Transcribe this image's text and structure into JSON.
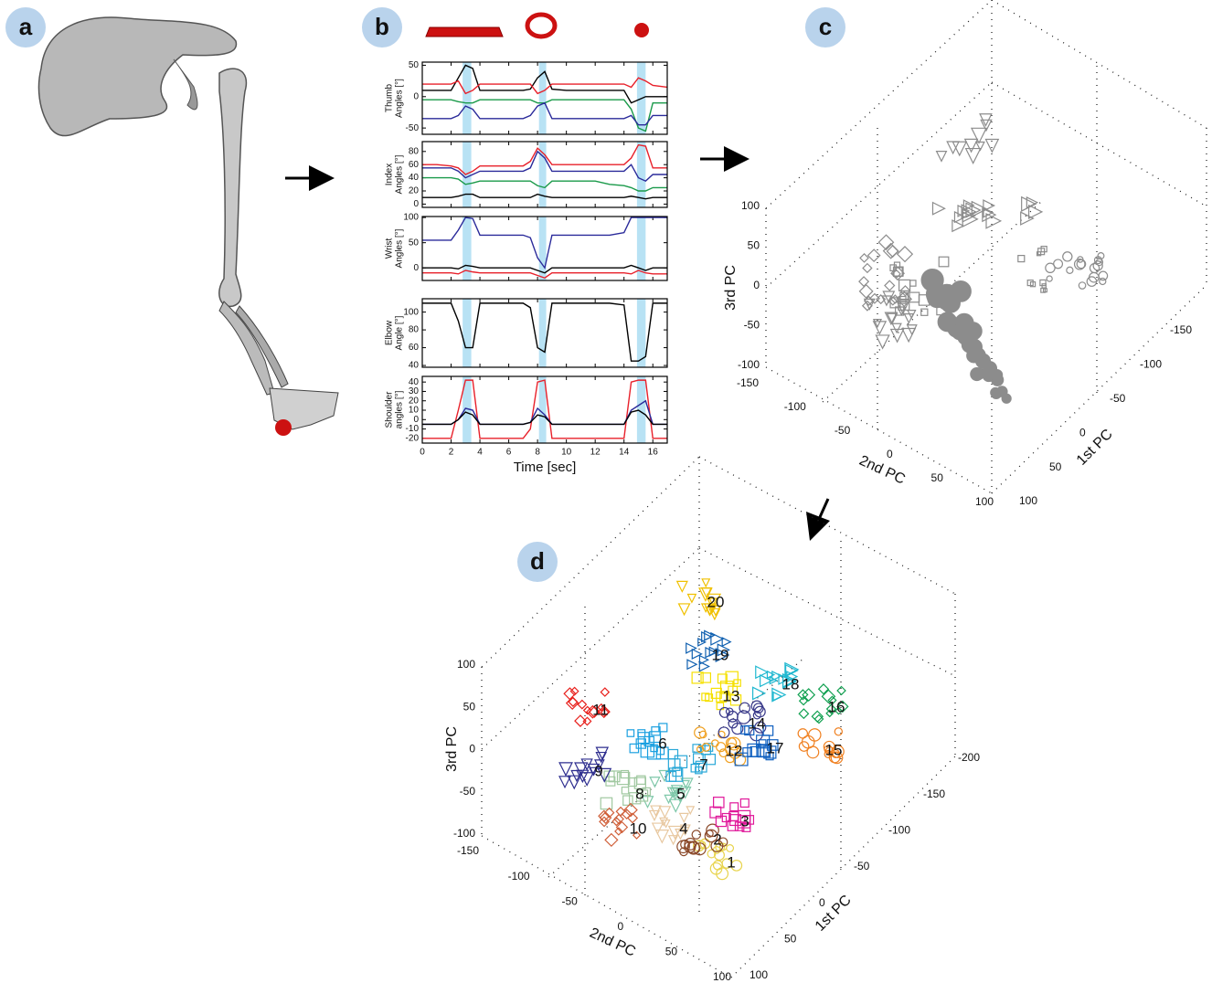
{
  "panel_labels": [
    "a",
    "b",
    "c",
    "d"
  ],
  "panel_b": {
    "highlights": [
      [
        2.8,
        3.4
      ],
      [
        8.1,
        8.6
      ],
      [
        14.9,
        15.5
      ]
    ]
  },
  "chart_data": [
    {
      "type": "line",
      "ylabel": [
        "Thumb",
        "Angles [°]"
      ],
      "xlim": [
        0,
        17
      ],
      "ylim": [
        -60,
        55
      ],
      "yticks": [
        -50,
        0,
        50
      ],
      "x": [
        0,
        1,
        2,
        2.5,
        3,
        3.5,
        4,
        5,
        6,
        7,
        7.5,
        8,
        8.5,
        9,
        10,
        11,
        12,
        13,
        14,
        14.5,
        15,
        15.5,
        16,
        17
      ],
      "series": [
        {
          "color": "#000000",
          "values": [
            10,
            10,
            10,
            30,
            50,
            45,
            10,
            10,
            10,
            10,
            12,
            30,
            40,
            12,
            10,
            10,
            10,
            10,
            10,
            -10,
            -5,
            0,
            0,
            0
          ]
        },
        {
          "color": "#e8202a",
          "values": [
            20,
            20,
            20,
            25,
            5,
            10,
            20,
            20,
            20,
            20,
            20,
            5,
            10,
            20,
            20,
            20,
            20,
            20,
            20,
            15,
            30,
            25,
            18,
            15
          ]
        },
        {
          "color": "#1a9a4a",
          "values": [
            -5,
            -5,
            -5,
            -8,
            -10,
            -10,
            -5,
            -5,
            -5,
            -5,
            -5,
            -10,
            -10,
            -5,
            -5,
            -5,
            -5,
            -5,
            -5,
            -20,
            -50,
            -55,
            -10,
            -10
          ]
        },
        {
          "color": "#2a2a9a",
          "values": [
            -35,
            -35,
            -35,
            -30,
            -15,
            -20,
            -35,
            -35,
            -35,
            -35,
            -30,
            -15,
            -10,
            -35,
            -35,
            -35,
            -35,
            -35,
            -35,
            -30,
            -45,
            -45,
            -30,
            -30
          ]
        }
      ]
    },
    {
      "type": "line",
      "ylabel": [
        "Index",
        "Angles [°]"
      ],
      "xlim": [
        0,
        17
      ],
      "ylim": [
        -5,
        95
      ],
      "yticks": [
        0,
        20,
        40,
        60,
        80
      ],
      "x": [
        0,
        1,
        2,
        2.5,
        3,
        3.5,
        4,
        5,
        6,
        7,
        7.5,
        8,
        8.5,
        9,
        10,
        11,
        12,
        13,
        14,
        14.5,
        15,
        15.5,
        16,
        17
      ],
      "series": [
        {
          "color": "#e8202a",
          "values": [
            60,
            60,
            58,
            55,
            45,
            50,
            58,
            58,
            58,
            58,
            65,
            85,
            75,
            60,
            60,
            60,
            60,
            60,
            60,
            70,
            90,
            88,
            55,
            55
          ]
        },
        {
          "color": "#2a2a9a",
          "values": [
            55,
            55,
            55,
            50,
            40,
            45,
            50,
            50,
            50,
            50,
            55,
            80,
            70,
            50,
            50,
            50,
            50,
            50,
            50,
            60,
            40,
            35,
            45,
            45
          ]
        },
        {
          "color": "#1a9a4a",
          "values": [
            40,
            40,
            40,
            38,
            30,
            32,
            35,
            35,
            35,
            35,
            35,
            28,
            25,
            35,
            35,
            35,
            35,
            30,
            28,
            25,
            20,
            20,
            25,
            25
          ]
        },
        {
          "color": "#000000",
          "values": [
            10,
            10,
            10,
            12,
            15,
            15,
            10,
            10,
            10,
            10,
            10,
            15,
            12,
            10,
            10,
            10,
            10,
            10,
            10,
            12,
            10,
            8,
            10,
            10
          ]
        }
      ]
    },
    {
      "type": "line",
      "ylabel": [
        "Wrist",
        "Angles [°]"
      ],
      "xlim": [
        0,
        17
      ],
      "ylim": [
        -25,
        102
      ],
      "yticks": [
        0,
        50,
        100
      ],
      "x": [
        0,
        1,
        2,
        2.5,
        3,
        3.5,
        4,
        5,
        6,
        7,
        7.5,
        8,
        8.5,
        9,
        10,
        11,
        12,
        13,
        14,
        14.5,
        15,
        15.5,
        16,
        17
      ],
      "series": [
        {
          "color": "#2a2a9a",
          "values": [
            55,
            55,
            55,
            75,
            100,
            98,
            65,
            65,
            65,
            65,
            60,
            20,
            0,
            65,
            65,
            65,
            65,
            65,
            70,
            100,
            100,
            100,
            100,
            100
          ]
        },
        {
          "color": "#000000",
          "values": [
            0,
            0,
            0,
            -2,
            5,
            3,
            0,
            0,
            0,
            0,
            0,
            -5,
            -10,
            0,
            0,
            0,
            0,
            0,
            0,
            5,
            0,
            -5,
            0,
            0
          ]
        },
        {
          "color": "#e8202a",
          "values": [
            -10,
            -10,
            -10,
            -12,
            -5,
            -8,
            -10,
            -10,
            -10,
            -10,
            -10,
            -15,
            -20,
            -10,
            -10,
            -10,
            -10,
            -10,
            -10,
            -12,
            -5,
            -10,
            -12,
            -12
          ]
        }
      ]
    },
    {
      "type": "line",
      "ylabel": [
        "Elbow",
        "Angle [°]"
      ],
      "xlim": [
        0,
        17
      ],
      "ylim": [
        38,
        115
      ],
      "yticks": [
        40,
        60,
        80,
        100
      ],
      "x": [
        0,
        1,
        2,
        2.5,
        3,
        3.5,
        4,
        5,
        6,
        7,
        7.5,
        8,
        8.5,
        9,
        10,
        11,
        12,
        13,
        14,
        14.5,
        15,
        15.5,
        16,
        17
      ],
      "series": [
        {
          "color": "#000000",
          "values": [
            110,
            110,
            110,
            90,
            60,
            60,
            110,
            110,
            110,
            110,
            105,
            60,
            55,
            110,
            110,
            110,
            110,
            110,
            108,
            45,
            45,
            50,
            110,
            110
          ]
        }
      ]
    },
    {
      "type": "line",
      "ylabel": [
        "Shoulder",
        "angles [°]"
      ],
      "xlabel": "Time [sec]",
      "xlim": [
        0,
        17
      ],
      "xticks": [
        0,
        2,
        4,
        6,
        8,
        10,
        12,
        14,
        16
      ],
      "ylim": [
        -25,
        46
      ],
      "yticks": [
        -20,
        -10,
        0,
        10,
        20,
        30,
        40
      ],
      "x": [
        0,
        1,
        2,
        2.5,
        3,
        3.5,
        4,
        5,
        6,
        7,
        7.5,
        8,
        8.5,
        9,
        10,
        11,
        12,
        13,
        14,
        14.5,
        15,
        15.5,
        16,
        17
      ],
      "series": [
        {
          "color": "#e8202a",
          "values": [
            -20,
            -20,
            -20,
            10,
            42,
            42,
            -20,
            -20,
            -20,
            -20,
            -10,
            40,
            42,
            -20,
            -20,
            -20,
            -20,
            -20,
            -20,
            40,
            42,
            42,
            -20,
            -20
          ]
        },
        {
          "color": "#2a2a9a",
          "values": [
            -5,
            -5,
            -5,
            0,
            12,
            10,
            -5,
            -5,
            -5,
            -5,
            -3,
            12,
            5,
            -5,
            -5,
            -5,
            -5,
            -5,
            -5,
            10,
            15,
            20,
            -5,
            -5
          ]
        },
        {
          "color": "#000000",
          "values": [
            -5,
            -5,
            -5,
            0,
            8,
            5,
            -5,
            -5,
            -5,
            -5,
            -3,
            5,
            3,
            -5,
            -5,
            -5,
            -5,
            -5,
            -5,
            8,
            10,
            5,
            -5,
            -5
          ]
        }
      ]
    }
  ],
  "panel_c": {
    "zlabel": "3rd  PC",
    "zticks": [
      100,
      50,
      0,
      -50,
      -100
    ],
    "ylabel": "2nd PC",
    "yticks": [
      -150,
      -100,
      -50,
      0,
      50,
      100
    ],
    "xlabel": "1st PC",
    "xticks": [
      100,
      50,
      0,
      -50,
      -100,
      -150
    ]
  },
  "panel_d": {
    "zlabel": "3rd PC",
    "zticks": [
      100,
      50,
      0,
      -50,
      -100
    ],
    "ylabel": "2nd PC",
    "yticks": [
      -150,
      -100,
      -50,
      0,
      50,
      100
    ],
    "xlabel": "1st PC",
    "xticks": [
      100,
      50,
      0,
      -50,
      -100,
      -150,
      -200
    ],
    "clusters": [
      1,
      2,
      3,
      4,
      5,
      6,
      7,
      8,
      9,
      10,
      11,
      12,
      13,
      14,
      15,
      16,
      17,
      18,
      19,
      20
    ]
  }
}
